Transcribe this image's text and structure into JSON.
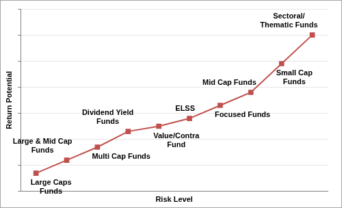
{
  "chart_data": {
    "type": "line",
    "x_label": "Risk Level",
    "y_label": "Return Potential",
    "categories": [
      "Large Caps Funds",
      "Large & Mid Cap Funds",
      "Multi Cap Funds",
      "Dividend Yield Funds",
      "Value/Contra Fund",
      "ELSS",
      "Focused Funds",
      "Mid Cap Funds",
      "Small Cap Funds",
      "Sectoral/ Thematic Funds"
    ],
    "values": [
      0.7,
      1.2,
      1.7,
      2.3,
      2.5,
      2.8,
      3.3,
      3.8,
      4.9,
      6.0
    ],
    "color": "#c0504d",
    "marker": "square",
    "ylim": [
      0,
      7
    ],
    "yticks": [
      0,
      1,
      2,
      3,
      4,
      5,
      6,
      7
    ],
    "grid": true,
    "tick_labels": false
  }
}
